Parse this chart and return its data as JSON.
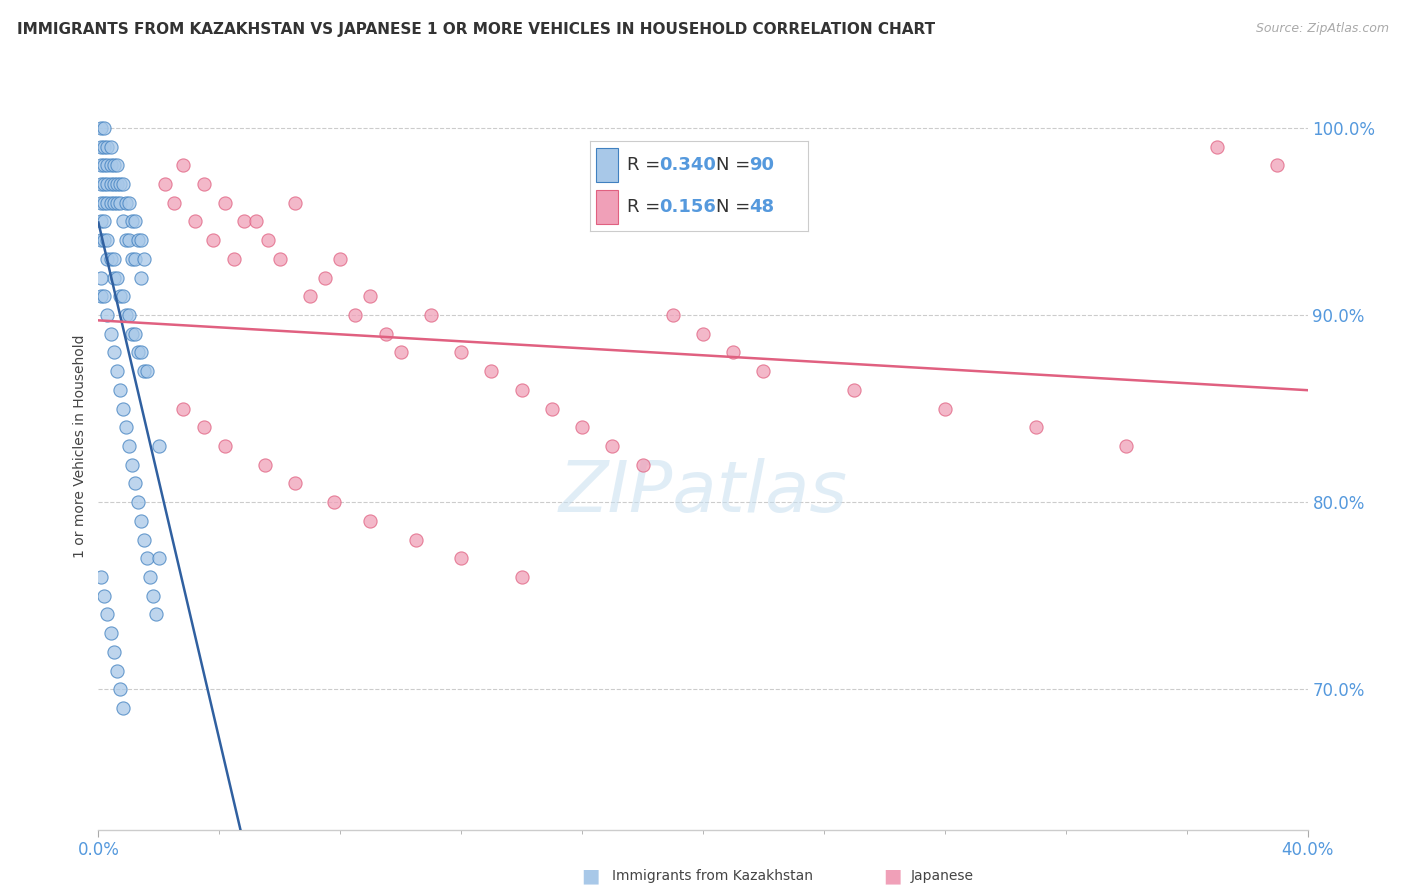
{
  "title": "IMMIGRANTS FROM KAZAKHSTAN VS JAPANESE 1 OR MORE VEHICLES IN HOUSEHOLD CORRELATION CHART",
  "source": "Source: ZipAtlas.com",
  "ylabel": "1 or more Vehicles in Household",
  "y_tick_vals": [
    0.7,
    0.8,
    0.9,
    1.0
  ],
  "y_tick_labels": [
    "70.0%",
    "80.0%",
    "90.0%",
    "100.0%"
  ],
  "xlim": [
    0.0,
    0.4
  ],
  "ylim": [
    0.625,
    1.035
  ],
  "x_left_label": "0.0%",
  "x_right_label": "40.0%",
  "legend_R1": "0.340",
  "legend_N1": "90",
  "legend_R2": "0.156",
  "legend_N2": "48",
  "color_kaz_fill": "#a8c8e8",
  "color_kaz_edge": "#4080c0",
  "color_jpn_fill": "#f0a0b8",
  "color_jpn_edge": "#e06080",
  "color_kaz_line": "#3060a0",
  "color_jpn_line": "#e06080",
  "background_color": "#ffffff",
  "kaz_x": [
    0.001,
    0.001,
    0.001,
    0.001,
    0.001,
    0.002,
    0.002,
    0.002,
    0.002,
    0.002,
    0.003,
    0.003,
    0.003,
    0.003,
    0.004,
    0.004,
    0.004,
    0.004,
    0.005,
    0.005,
    0.005,
    0.006,
    0.006,
    0.006,
    0.007,
    0.007,
    0.008,
    0.008,
    0.009,
    0.009,
    0.01,
    0.01,
    0.011,
    0.011,
    0.012,
    0.012,
    0.013,
    0.014,
    0.014,
    0.015,
    0.001,
    0.001,
    0.002,
    0.002,
    0.003,
    0.003,
    0.004,
    0.005,
    0.005,
    0.006,
    0.007,
    0.008,
    0.009,
    0.01,
    0.011,
    0.012,
    0.013,
    0.014,
    0.015,
    0.016,
    0.001,
    0.001,
    0.002,
    0.003,
    0.004,
    0.005,
    0.006,
    0.007,
    0.008,
    0.009,
    0.01,
    0.011,
    0.012,
    0.013,
    0.014,
    0.015,
    0.016,
    0.017,
    0.018,
    0.019,
    0.02,
    0.02,
    0.001,
    0.002,
    0.003,
    0.004,
    0.005,
    0.006,
    0.007,
    0.008
  ],
  "kaz_y": [
    1.0,
    0.99,
    0.98,
    0.97,
    0.96,
    1.0,
    0.99,
    0.98,
    0.97,
    0.96,
    0.99,
    0.98,
    0.97,
    0.96,
    0.99,
    0.98,
    0.97,
    0.96,
    0.98,
    0.97,
    0.96,
    0.98,
    0.97,
    0.96,
    0.97,
    0.96,
    0.97,
    0.95,
    0.96,
    0.94,
    0.96,
    0.94,
    0.95,
    0.93,
    0.95,
    0.93,
    0.94,
    0.94,
    0.92,
    0.93,
    0.95,
    0.94,
    0.95,
    0.94,
    0.94,
    0.93,
    0.93,
    0.93,
    0.92,
    0.92,
    0.91,
    0.91,
    0.9,
    0.9,
    0.89,
    0.89,
    0.88,
    0.88,
    0.87,
    0.87,
    0.92,
    0.91,
    0.91,
    0.9,
    0.89,
    0.88,
    0.87,
    0.86,
    0.85,
    0.84,
    0.83,
    0.82,
    0.81,
    0.8,
    0.79,
    0.78,
    0.77,
    0.76,
    0.75,
    0.74,
    0.83,
    0.77,
    0.76,
    0.75,
    0.74,
    0.73,
    0.72,
    0.71,
    0.7,
    0.69
  ],
  "jpn_x": [
    0.022,
    0.025,
    0.028,
    0.032,
    0.035,
    0.038,
    0.042,
    0.045,
    0.048,
    0.052,
    0.056,
    0.06,
    0.065,
    0.07,
    0.075,
    0.08,
    0.085,
    0.09,
    0.095,
    0.1,
    0.11,
    0.12,
    0.13,
    0.14,
    0.15,
    0.16,
    0.17,
    0.18,
    0.19,
    0.2,
    0.21,
    0.22,
    0.25,
    0.28,
    0.31,
    0.34,
    0.37,
    0.39,
    0.028,
    0.035,
    0.042,
    0.055,
    0.065,
    0.078,
    0.09,
    0.105,
    0.12,
    0.14
  ],
  "jpn_y": [
    0.97,
    0.96,
    0.98,
    0.95,
    0.97,
    0.94,
    0.96,
    0.93,
    0.95,
    0.95,
    0.94,
    0.93,
    0.96,
    0.91,
    0.92,
    0.93,
    0.9,
    0.91,
    0.89,
    0.88,
    0.9,
    0.88,
    0.87,
    0.86,
    0.85,
    0.84,
    0.83,
    0.82,
    0.9,
    0.89,
    0.88,
    0.87,
    0.86,
    0.85,
    0.84,
    0.83,
    0.99,
    0.98,
    0.85,
    0.84,
    0.83,
    0.82,
    0.81,
    0.8,
    0.79,
    0.78,
    0.77,
    0.76
  ]
}
